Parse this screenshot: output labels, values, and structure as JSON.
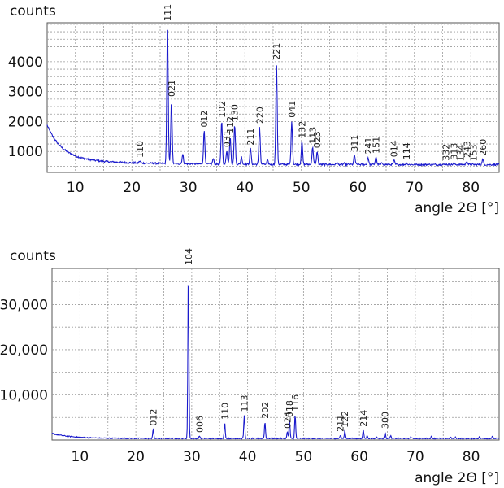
{
  "chart_data": [
    {
      "type": "line",
      "ylabel": "counts",
      "xlabel": "angle 2Θ [°]",
      "xlim": [
        5,
        85
      ],
      "ylim": [
        300,
        5300
      ],
      "grid": true,
      "color": "#1a1acc",
      "x_ticks": [
        "10",
        "20",
        "30",
        "40",
        "50",
        "60",
        "70",
        "80"
      ],
      "y_ticks": [
        "1000",
        "2000",
        "3000",
        "4000"
      ],
      "peaks": [
        {
          "x": 21.4,
          "y": 680,
          "label": "110"
        },
        {
          "x": 26.3,
          "y": 5250,
          "label": "111"
        },
        {
          "x": 27.0,
          "y": 2720,
          "label": "021"
        },
        {
          "x": 32.8,
          "y": 1700,
          "label": "012"
        },
        {
          "x": 35.9,
          "y": 2020,
          "label": "102"
        },
        {
          "x": 36.8,
          "y": 1030,
          "label": "031"
        },
        {
          "x": 37.4,
          "y": 1500,
          "label": "112"
        },
        {
          "x": 38.2,
          "y": 1900,
          "label": "130"
        },
        {
          "x": 41.0,
          "y": 1100,
          "label": "211"
        },
        {
          "x": 42.6,
          "y": 1820,
          "label": "220"
        },
        {
          "x": 45.6,
          "y": 3950,
          "label": "221"
        },
        {
          "x": 48.3,
          "y": 2020,
          "label": "041"
        },
        {
          "x": 50.1,
          "y": 1340,
          "label": "132"
        },
        {
          "x": 52.0,
          "y": 1150,
          "label": "113"
        },
        {
          "x": 52.8,
          "y": 1000,
          "label": "023"
        },
        {
          "x": 59.4,
          "y": 880,
          "label": "311"
        },
        {
          "x": 61.8,
          "y": 800,
          "label": "241"
        },
        {
          "x": 63.2,
          "y": 820,
          "label": "151"
        },
        {
          "x": 66.4,
          "y": 700,
          "label": "014"
        },
        {
          "x": 68.6,
          "y": 620,
          "label": "114"
        },
        {
          "x": 75.6,
          "y": 580,
          "label": "332"
        },
        {
          "x": 77.0,
          "y": 610,
          "label": "313"
        },
        {
          "x": 78.2,
          "y": 560,
          "label": "134"
        },
        {
          "x": 79.3,
          "y": 680,
          "label": "243"
        },
        {
          "x": 80.5,
          "y": 560,
          "label": "153"
        },
        {
          "x": 82.1,
          "y": 740,
          "label": "260"
        }
      ],
      "minor_peaks": [
        {
          "x": 29.0,
          "y": 900
        },
        {
          "x": 34.4,
          "y": 760
        },
        {
          "x": 39.4,
          "y": 820
        },
        {
          "x": 44.0,
          "y": 700
        },
        {
          "x": 54.6,
          "y": 560
        },
        {
          "x": 56.3,
          "y": 620
        },
        {
          "x": 57.6,
          "y": 600
        },
        {
          "x": 64.3,
          "y": 620
        },
        {
          "x": 70.2,
          "y": 560
        },
        {
          "x": 72.4,
          "y": 540
        },
        {
          "x": 84.0,
          "y": 560
        }
      ]
    },
    {
      "type": "line",
      "ylabel": "counts",
      "xlabel": "angle 2Θ [°]",
      "xlim": [
        5,
        85
      ],
      "ylim": [
        0,
        38000
      ],
      "grid": true,
      "color": "#1a1acc",
      "x_ticks": [
        "10",
        "20",
        "30",
        "40",
        "50",
        "60",
        "70",
        "80"
      ],
      "y_ticks": [
        "10,000",
        "20,000",
        "30,000"
      ],
      "peaks": [
        {
          "x": 23.1,
          "y": 2400,
          "label": "012"
        },
        {
          "x": 29.4,
          "y": 38000,
          "label": "104"
        },
        {
          "x": 31.4,
          "y": 900,
          "label": "006"
        },
        {
          "x": 35.9,
          "y": 3800,
          "label": "110"
        },
        {
          "x": 39.4,
          "y": 5500,
          "label": "113"
        },
        {
          "x": 43.1,
          "y": 4000,
          "label": "202"
        },
        {
          "x": 47.1,
          "y": 1800,
          "label": "024"
        },
        {
          "x": 47.5,
          "y": 4300,
          "label": "018"
        },
        {
          "x": 48.5,
          "y": 5600,
          "label": "116"
        },
        {
          "x": 56.6,
          "y": 1100,
          "label": "211"
        },
        {
          "x": 57.4,
          "y": 2000,
          "label": "122"
        },
        {
          "x": 60.7,
          "y": 2200,
          "label": "214"
        },
        {
          "x": 64.6,
          "y": 1800,
          "label": "300"
        }
      ],
      "minor_peaks": [
        {
          "x": 61.4,
          "y": 1000
        },
        {
          "x": 63.1,
          "y": 700
        },
        {
          "x": 65.6,
          "y": 900
        },
        {
          "x": 69.2,
          "y": 700
        },
        {
          "x": 72.9,
          "y": 800
        },
        {
          "x": 76.3,
          "y": 600
        },
        {
          "x": 77.2,
          "y": 600
        },
        {
          "x": 81.5,
          "y": 700
        },
        {
          "x": 83.8,
          "y": 800
        }
      ]
    }
  ]
}
